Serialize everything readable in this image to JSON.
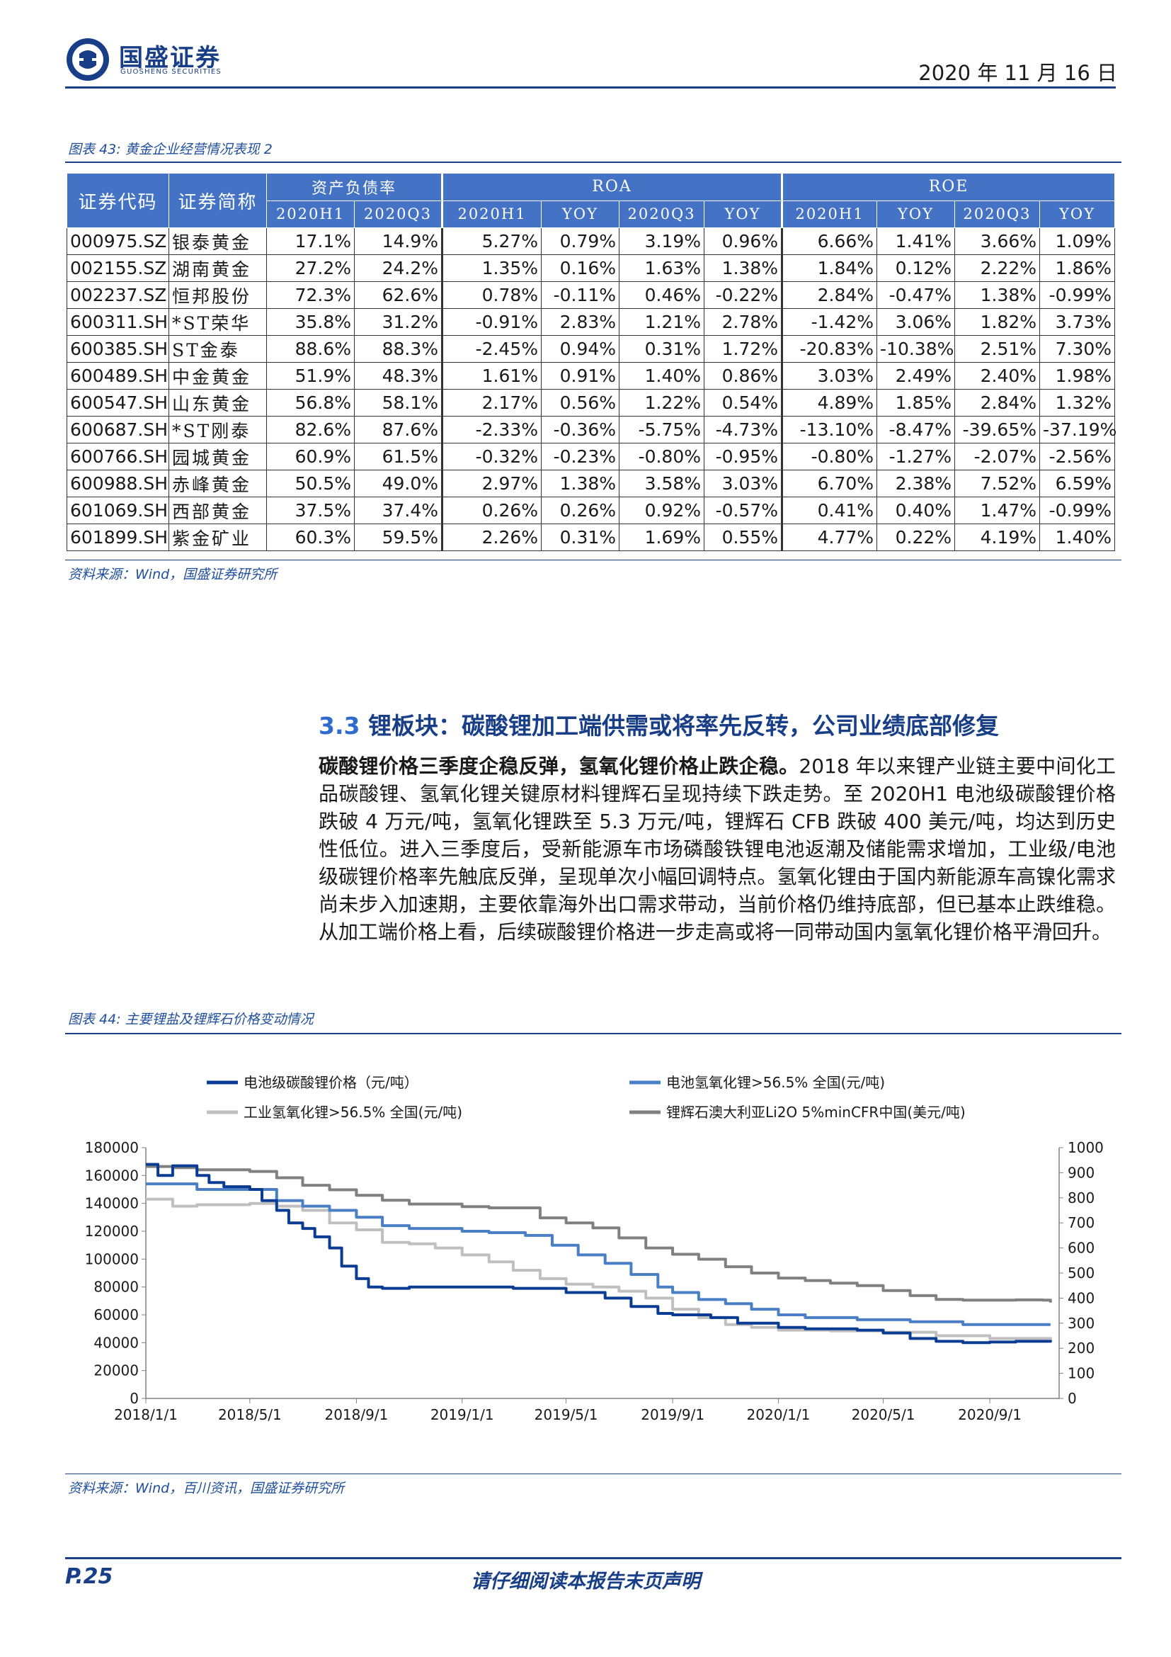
{
  "header": {
    "brand_cn": "国盛证券",
    "brand_en": "GUOSHENG SECURITIES",
    "date": "2020 年 11 月 16 日"
  },
  "table43": {
    "caption": "图表 43:  黄金企业经营情况表现 2",
    "headers": {
      "code": "证券代码",
      "name": "证券简称",
      "groups": [
        "资产负债率",
        "ROA",
        "ROE"
      ],
      "subs": [
        "2020H1",
        "2020Q3",
        "2020H1",
        "YOY",
        "2020Q3",
        "YOY",
        "2020H1",
        "YOY",
        "2020Q3",
        "YOY"
      ]
    },
    "rows": [
      [
        "000975.SZ",
        "银泰黄金",
        "17.1%",
        "14.9%",
        "5.27%",
        "0.79%",
        "3.19%",
        "0.96%",
        "6.66%",
        "1.41%",
        "3.66%",
        "1.09%"
      ],
      [
        "002155.SZ",
        "湖南黄金",
        "27.2%",
        "24.2%",
        "1.35%",
        "0.16%",
        "1.63%",
        "1.38%",
        "1.84%",
        "0.12%",
        "2.22%",
        "1.86%"
      ],
      [
        "002237.SZ",
        "恒邦股份",
        "72.3%",
        "62.6%",
        "0.78%",
        "-0.11%",
        "0.46%",
        "-0.22%",
        "2.84%",
        "-0.47%",
        "1.38%",
        "-0.99%"
      ],
      [
        "600311.SH",
        "*ST荣华",
        "35.8%",
        "31.2%",
        "-0.91%",
        "2.83%",
        "1.21%",
        "2.78%",
        "-1.42%",
        "3.06%",
        "1.82%",
        "3.73%"
      ],
      [
        "600385.SH",
        "ST金泰",
        "88.6%",
        "88.3%",
        "-2.45%",
        "0.94%",
        "0.31%",
        "1.72%",
        "-20.83%",
        "-10.38%",
        "2.51%",
        "7.30%"
      ],
      [
        "600489.SH",
        "中金黄金",
        "51.9%",
        "48.3%",
        "1.61%",
        "0.91%",
        "1.40%",
        "0.86%",
        "3.03%",
        "2.49%",
        "2.40%",
        "1.98%"
      ],
      [
        "600547.SH",
        "山东黄金",
        "56.8%",
        "58.1%",
        "2.17%",
        "0.56%",
        "1.22%",
        "0.54%",
        "4.89%",
        "1.85%",
        "2.84%",
        "1.32%"
      ],
      [
        "600687.SH",
        "*ST刚泰",
        "82.6%",
        "87.6%",
        "-2.33%",
        "-0.36%",
        "-5.75%",
        "-4.73%",
        "-13.10%",
        "-8.47%",
        "-39.65%",
        "-37.19%"
      ],
      [
        "600766.SH",
        "园城黄金",
        "60.9%",
        "61.5%",
        "-0.32%",
        "-0.23%",
        "-0.80%",
        "-0.95%",
        "-0.80%",
        "-1.27%",
        "-2.07%",
        "-2.56%"
      ],
      [
        "600988.SH",
        "赤峰黄金",
        "50.5%",
        "49.0%",
        "2.97%",
        "1.38%",
        "3.58%",
        "3.03%",
        "6.70%",
        "2.38%",
        "7.52%",
        "6.59%"
      ],
      [
        "601069.SH",
        "西部黄金",
        "37.5%",
        "37.4%",
        "0.26%",
        "0.26%",
        "0.92%",
        "-0.57%",
        "0.41%",
        "0.40%",
        "1.47%",
        "-0.99%"
      ],
      [
        "601899.SH",
        "紫金矿业",
        "60.3%",
        "59.5%",
        "2.26%",
        "0.31%",
        "1.69%",
        "0.55%",
        "4.77%",
        "0.22%",
        "4.19%",
        "1.40%"
      ]
    ],
    "source": "资料来源：Wind，国盛证券研究所"
  },
  "section": {
    "number": "3.3",
    "title": " 锂板块：碳酸锂加工端供需或将率先反转，公司业绩底部修复",
    "lead": "碳酸锂价格三季度企稳反弹，氢氧化锂价格止跌企稳。",
    "body": "2018 年以来锂产业链主要中间化工品碳酸锂、氢氧化锂关键原材料锂辉石呈现持续下跌走势。至 2020H1 电池级碳酸锂价格跌破 4 万元/吨，氢氧化锂跌至 5.3 万元/吨，锂辉石 CFB 跌破 400 美元/吨，均达到历史性低位。进入三季度后，受新能源车市场磷酸铁锂电池返潮及储能需求增加，工业级/电池级碳锂价格率先触底反弹，呈现单次小幅回调特点。氢氧化锂由于国内新能源车高镍化需求尚未步入加速期，主要依靠海外出口需求带动，当前价格仍维持底部，但已基本止跌维稳。从加工端价格上看，后续碳酸锂价格进一步走高或将一同带动国内氢氧化锂价格平滑回升。"
  },
  "chart44": {
    "caption": "图表 44:  主要锂盐及锂辉石价格变动情况",
    "source": "资料来源：Wind，百川资讯，国盛证券研究所"
  },
  "chart_data": {
    "type": "line",
    "title": "",
    "xlabel": "",
    "ylabel": "",
    "x_ticks": [
      "2018/1/1",
      "2018/5/1",
      "2018/9/1",
      "2019/1/1",
      "2019/5/1",
      "2019/9/1",
      "2020/1/1",
      "2020/5/1",
      "2020/9/1"
    ],
    "y_left": {
      "ylim": [
        0,
        180000
      ],
      "ticks": [
        0,
        20000,
        40000,
        60000,
        80000,
        100000,
        120000,
        140000,
        160000,
        180000
      ]
    },
    "y_right": {
      "ylim": [
        0,
        1000
      ],
      "ticks": [
        0,
        100,
        200,
        300,
        400,
        500,
        600,
        700,
        800,
        900,
        1000
      ]
    },
    "legend_placement": "top",
    "grid": false,
    "series": [
      {
        "name": "电池级碳酸锂价格（元/吨）",
        "axis": "left",
        "color": "#0b3c93",
        "points": [
          [
            "2018/1/1",
            168000
          ],
          [
            "2018/1/15",
            160000
          ],
          [
            "2018/2/1",
            167000
          ],
          [
            "2018/3/1",
            160000
          ],
          [
            "2018/3/15",
            155000
          ],
          [
            "2018/4/1",
            152000
          ],
          [
            "2018/5/1",
            150000
          ],
          [
            "2018/5/15",
            142000
          ],
          [
            "2018/6/1",
            135000
          ],
          [
            "2018/6/15",
            126000
          ],
          [
            "2018/7/1",
            122000
          ],
          [
            "2018/7/15",
            116000
          ],
          [
            "2018/8/1",
            108000
          ],
          [
            "2018/8/15",
            95000
          ],
          [
            "2018/9/1",
            86000
          ],
          [
            "2018/9/15",
            80000
          ],
          [
            "2018/10/1",
            79000
          ],
          [
            "2018/11/1",
            80000
          ],
          [
            "2019/1/1",
            80000
          ],
          [
            "2019/3/1",
            79000
          ],
          [
            "2019/5/1",
            76000
          ],
          [
            "2019/6/15",
            72000
          ],
          [
            "2019/7/15",
            66000
          ],
          [
            "2019/8/15",
            61000
          ],
          [
            "2019/9/1",
            60000
          ],
          [
            "2019/10/15",
            58000
          ],
          [
            "2019/11/15",
            54000
          ],
          [
            "2020/1/1",
            51000
          ],
          [
            "2020/2/1",
            50000
          ],
          [
            "2020/4/1",
            49000
          ],
          [
            "2020/5/1",
            47000
          ],
          [
            "2020/6/1",
            43000
          ],
          [
            "2020/7/1",
            41000
          ],
          [
            "2020/8/1",
            40000
          ],
          [
            "2020/9/1",
            40500
          ],
          [
            "2020/10/1",
            41000
          ],
          [
            "2020/11/10",
            42000
          ]
        ]
      },
      {
        "name": "电池氢氧化锂>56.5% 全国(元/吨)",
        "axis": "left",
        "color": "#4a7fc6",
        "points": [
          [
            "2018/1/1",
            154000
          ],
          [
            "2018/3/1",
            150000
          ],
          [
            "2018/5/1",
            150000
          ],
          [
            "2018/6/1",
            142000
          ],
          [
            "2018/7/1",
            138000
          ],
          [
            "2018/8/1",
            135000
          ],
          [
            "2018/9/1",
            130000
          ],
          [
            "2018/10/1",
            124000
          ],
          [
            "2018/11/1",
            122000
          ],
          [
            "2019/1/1",
            120000
          ],
          [
            "2019/2/1",
            119000
          ],
          [
            "2019/3/15",
            117000
          ],
          [
            "2019/4/15",
            110000
          ],
          [
            "2019/5/15",
            103000
          ],
          [
            "2019/6/15",
            97000
          ],
          [
            "2019/7/15",
            89000
          ],
          [
            "2019/8/15",
            80000
          ],
          [
            "2019/9/1",
            76000
          ],
          [
            "2019/10/1",
            71000
          ],
          [
            "2019/11/1",
            68000
          ],
          [
            "2019/12/1",
            64000
          ],
          [
            "2020/1/1",
            60000
          ],
          [
            "2020/2/1",
            58000
          ],
          [
            "2020/4/1",
            56500
          ],
          [
            "2020/6/1",
            55000
          ],
          [
            "2020/8/1",
            53000
          ],
          [
            "2020/9/1",
            53000
          ],
          [
            "2020/11/10",
            53000
          ]
        ]
      },
      {
        "name": "工业氢氧化锂>56.5% 全国(元/吨)",
        "axis": "left",
        "color": "#bfbfbf",
        "points": [
          [
            "2018/1/1",
            143000
          ],
          [
            "2018/2/1",
            138000
          ],
          [
            "2018/3/1",
            139000
          ],
          [
            "2018/5/1",
            140000
          ],
          [
            "2018/6/1",
            138000
          ],
          [
            "2018/7/1",
            135000
          ],
          [
            "2018/8/1",
            126000
          ],
          [
            "2018/9/1",
            121000
          ],
          [
            "2018/10/1",
            112000
          ],
          [
            "2018/11/1",
            111000
          ],
          [
            "2018/12/1",
            108000
          ],
          [
            "2019/1/1",
            103000
          ],
          [
            "2019/2/1",
            98000
          ],
          [
            "2019/3/1",
            92000
          ],
          [
            "2019/4/1",
            86000
          ],
          [
            "2019/5/1",
            82000
          ],
          [
            "2019/6/1",
            80000
          ],
          [
            "2019/7/1",
            77000
          ],
          [
            "2019/8/1",
            72000
          ],
          [
            "2019/9/1",
            64000
          ],
          [
            "2019/10/1",
            58000
          ],
          [
            "2019/11/1",
            53000
          ],
          [
            "2019/12/1",
            51000
          ],
          [
            "2020/1/1",
            49000
          ],
          [
            "2020/3/1",
            48500
          ],
          [
            "2020/5/1",
            47500
          ],
          [
            "2020/7/1",
            45000
          ],
          [
            "2020/9/1",
            43000
          ],
          [
            "2020/11/10",
            44000
          ]
        ]
      },
      {
        "name": "锂辉石澳大利亚Li2O 5%minCFR中国(美元/吨)",
        "axis": "right",
        "color": "#808080",
        "points": [
          [
            "2018/1/1",
            925
          ],
          [
            "2018/2/1",
            920
          ],
          [
            "2018/3/1",
            912
          ],
          [
            "2018/5/1",
            905
          ],
          [
            "2018/6/1",
            880
          ],
          [
            "2018/7/1",
            850
          ],
          [
            "2018/8/1",
            832
          ],
          [
            "2018/9/1",
            810
          ],
          [
            "2018/10/1",
            790
          ],
          [
            "2018/11/1",
            775
          ],
          [
            "2019/1/1",
            765
          ],
          [
            "2019/2/1",
            760
          ],
          [
            "2019/3/1",
            760
          ],
          [
            "2019/4/1",
            720
          ],
          [
            "2019/5/1",
            700
          ],
          [
            "2019/6/1",
            680
          ],
          [
            "2019/7/1",
            640
          ],
          [
            "2019/8/1",
            600
          ],
          [
            "2019/9/1",
            575
          ],
          [
            "2019/10/1",
            555
          ],
          [
            "2019/11/1",
            525
          ],
          [
            "2019/12/1",
            500
          ],
          [
            "2020/1/1",
            480
          ],
          [
            "2020/2/1",
            470
          ],
          [
            "2020/3/1",
            460
          ],
          [
            "2020/4/1",
            450
          ],
          [
            "2020/5/1",
            430
          ],
          [
            "2020/6/1",
            410
          ],
          [
            "2020/7/1",
            395
          ],
          [
            "2020/8/1",
            392
          ],
          [
            "2020/9/1",
            392
          ],
          [
            "2020/10/1",
            393
          ],
          [
            "2020/11/1",
            392
          ],
          [
            "2020/11/10",
            382
          ]
        ]
      }
    ]
  },
  "footer": {
    "page": "P.25",
    "disclaimer": "请仔细阅读本报告末页声明"
  }
}
